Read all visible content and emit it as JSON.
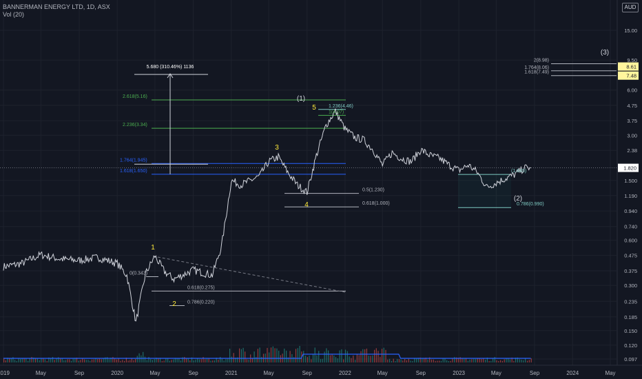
{
  "header": {
    "symbol_title": "BANNERMAN ENERGY LTD, 1D, ASX",
    "volume_label": "Vol (20)",
    "currency": "AUD"
  },
  "colors": {
    "background": "#131722",
    "price_line": "#d1d4dc",
    "fib_green": "#4caf50",
    "fib_blue": "#2962ff",
    "fib_white": "#b2b5be",
    "fib_teal": "#80cbc4",
    "wave_label": "#ffeb3b",
    "volume_up": "#26a69a",
    "volume_down": "#ef5350",
    "volume_ma": "#2962ff"
  },
  "chart_data": {
    "type": "line",
    "title": "BANNERMAN ENERGY LTD, 1D, ASX",
    "y_scale": "log",
    "y_axis_ticks": [
      "15.00",
      "9.50",
      "6.00",
      "4.75",
      "3.75",
      "3.00",
      "2.38",
      "1.500",
      "1.190",
      "0.940",
      "0.740",
      "0.600",
      "0.475",
      "0.375",
      "0.300",
      "0.235",
      "0.185",
      "0.150",
      "0.120",
      "0.097"
    ],
    "x_axis_ticks": [
      "2019",
      "May",
      "Sep",
      "2020",
      "May",
      "Sep",
      "2021",
      "May",
      "Sep",
      "2022",
      "May",
      "Sep",
      "2023",
      "May",
      "Sep",
      "2024",
      "May"
    ],
    "last_price_label": "1.820",
    "x_range": [
      "2019-01",
      "2024-06"
    ],
    "series": [
      {
        "x": [
          "2019-01",
          "2019-03",
          "2019-05",
          "2019-07",
          "2019-09",
          "2019-11",
          "2020-01",
          "2020-02",
          "2020-03",
          "2020-04",
          "2020-05",
          "2020-06",
          "2020-07",
          "2020-09",
          "2020-11",
          "2020-12",
          "2021-01",
          "2021-02",
          "2021-04",
          "2021-05",
          "2021-06",
          "2021-07",
          "2021-08",
          "2021-09",
          "2021-10",
          "2021-11",
          "2021-12",
          "2022-01",
          "2022-02",
          "2022-03",
          "2022-04",
          "2022-05",
          "2022-06",
          "2022-07",
          "2022-08",
          "2022-09",
          "2022-10",
          "2022-11",
          "2022-12",
          "2023-01",
          "2023-02",
          "2023-03",
          "2023-04",
          "2023-05",
          "2023-06",
          "2023-07",
          "2023-08"
        ],
        "values": [
          0.4,
          0.42,
          0.48,
          0.45,
          0.44,
          0.46,
          0.42,
          0.35,
          0.17,
          0.36,
          0.47,
          0.37,
          0.33,
          0.38,
          0.35,
          0.55,
          1.5,
          1.4,
          1.6,
          2.0,
          2.15,
          1.7,
          1.4,
          1.25,
          2.2,
          3.5,
          4.35,
          3.3,
          2.9,
          2.8,
          2.4,
          1.9,
          2.3,
          2.1,
          2.0,
          2.4,
          2.2,
          2.1,
          1.9,
          1.75,
          1.9,
          1.7,
          1.35,
          1.45,
          1.55,
          1.65,
          1.82
        ]
      }
    ],
    "annotations": {
      "measure_label": "5.680 (310.46%) 1136",
      "waves_primary": [
        "1",
        "2",
        "3",
        "4",
        "5"
      ],
      "waves_intermediate": [
        "(1)",
        "(2)",
        "(3)"
      ],
      "fib_levels": [
        {
          "label": "2.618(5.16)",
          "value": 5.16
        },
        {
          "label": "2.236(3.34)",
          "value": 3.34
        },
        {
          "label": "1.764(1.945)",
          "value": 1.945
        },
        {
          "label": "1.618(1.650)",
          "value": 1.65
        },
        {
          "label": "1.236(4.46)",
          "value": 4.46
        },
        {
          "label": "1(4.07)",
          "value": 4.07
        },
        {
          "label": "0.5(1.230)",
          "value": 1.23
        },
        {
          "label": "0.618(1.000)",
          "value": 1.0
        },
        {
          "label": "0.618(0.275)",
          "value": 0.275
        },
        {
          "label": "0.786(0.220)",
          "value": 0.22
        },
        {
          "label": "0(0.343)",
          "value": 0.343
        },
        {
          "label": "0.786(0.990)",
          "value": 0.99
        },
        {
          "label": "(1.645)",
          "value": 1.645
        },
        {
          "label": "2(8.98)",
          "value": 8.98
        },
        {
          "label": "1.764(8.06)",
          "value": 8.06
        },
        {
          "label": "1.618(7.49)",
          "value": 7.49
        }
      ],
      "target_badges": [
        "8.61",
        "7.48"
      ]
    }
  }
}
